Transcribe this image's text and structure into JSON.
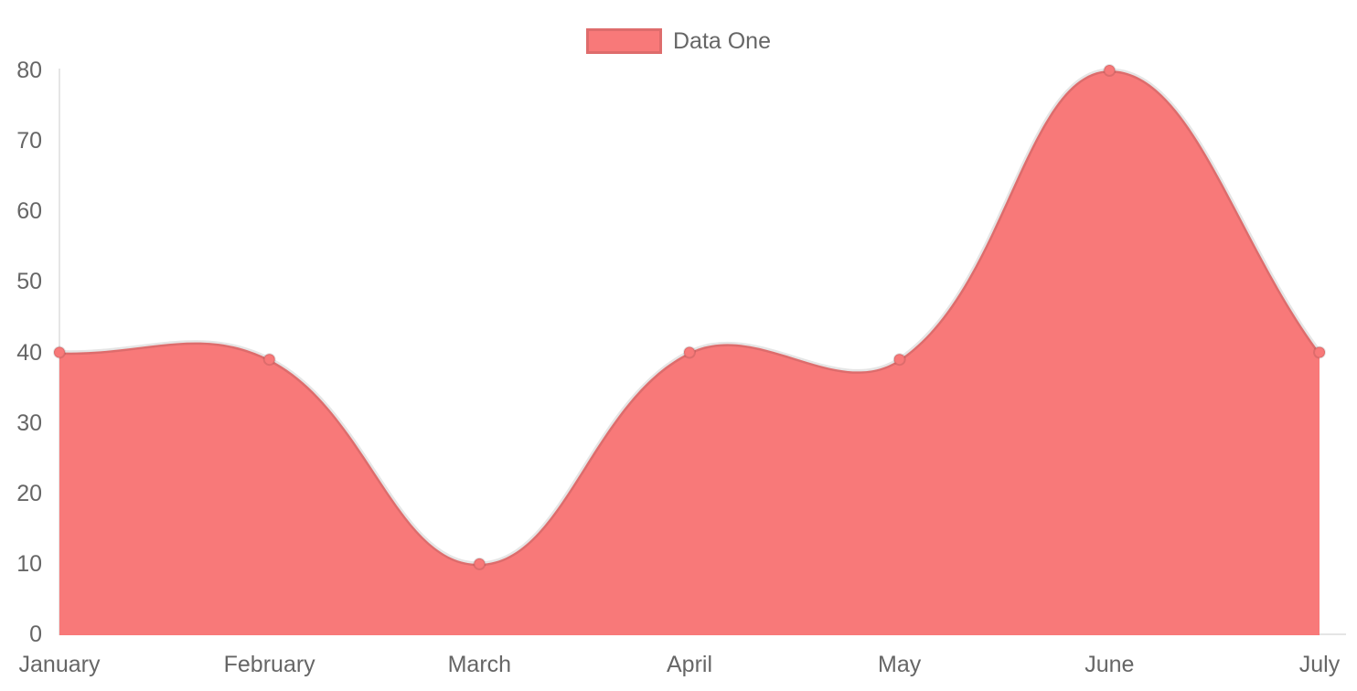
{
  "legend": {
    "position": "top",
    "items": [
      {
        "label": "Data One",
        "swatch_color": "#f87979"
      }
    ]
  },
  "chart_data": {
    "type": "area",
    "title": "",
    "xlabel": "",
    "ylabel": "",
    "categories": [
      "January",
      "February",
      "March",
      "April",
      "May",
      "June",
      "July"
    ],
    "series": [
      {
        "name": "Data One",
        "values": [
          40,
          39,
          10,
          40,
          39,
          80,
          40
        ]
      }
    ],
    "ylim": [
      0,
      80
    ],
    "yticks": [
      0,
      10,
      20,
      30,
      40,
      50,
      60,
      70,
      80
    ],
    "grid": false,
    "legend_position": "top",
    "line_tension": 0.4,
    "point_radius": 6,
    "line_width": 5,
    "colors": {
      "area_fill": "#f87979",
      "line_stroke": "rgba(0,0,0,0.10)",
      "point_fill": "#f87979",
      "point_stroke": "rgba(0,0,0,0.10)",
      "axis_line": "rgba(0,0,0,0.10)",
      "tick_text": "#666666",
      "background": "#ffffff"
    }
  }
}
